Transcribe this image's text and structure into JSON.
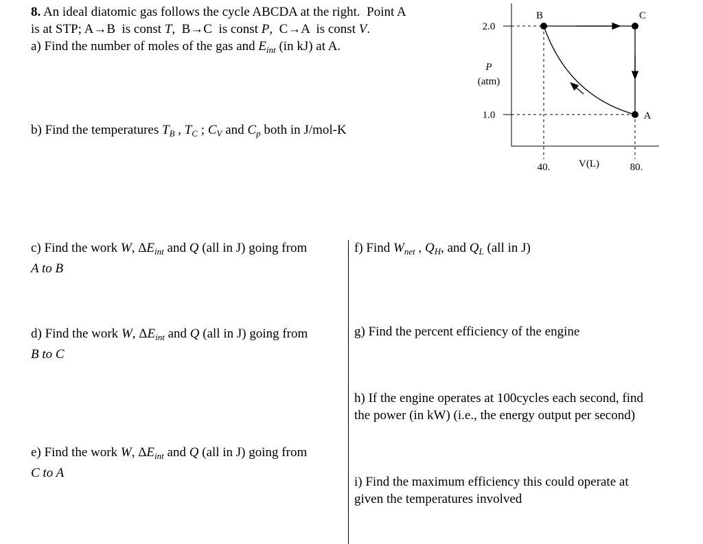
{
  "problem": {
    "number": "8.",
    "intro": [
      "An ideal diatomic gas follows the cycle ABCDA at the right.  Point A",
      "is at STP; A→B  is const ",
      "T",
      ",  B→C  is const ",
      "P",
      ",  C→A  is const ",
      "V",
      "."
    ]
  },
  "parts": {
    "a": {
      "label": "a)",
      "text": [
        "Find the number of moles of the gas and ",
        "E",
        "int",
        " (in kJ) at A."
      ]
    },
    "b": {
      "label": "b)",
      "text": [
        "Find the temperatures ",
        "T",
        "B",
        " , ",
        "T",
        "C",
        " ; ",
        "C",
        "V",
        " and ",
        "C",
        "p",
        " both in J/mol-K"
      ]
    },
    "c": {
      "label": "c)",
      "text": [
        "Find the work ",
        "W",
        ", Δ",
        "E",
        "int",
        " and ",
        "Q",
        " (all in J) going from",
        "A to B"
      ]
    },
    "d": {
      "label": "d)",
      "text": [
        "Find the work ",
        "W",
        ", Δ",
        "E",
        "int",
        " and ",
        "Q",
        " (all in J) going from",
        "B to C"
      ]
    },
    "e": {
      "label": "e)",
      "text": [
        "Find the work ",
        "W",
        ", Δ",
        "E",
        "int",
        " and ",
        "Q",
        " (all in J) going from",
        "C to A"
      ]
    },
    "f": {
      "label": "f)",
      "text": [
        "Find ",
        "W",
        "net",
        " , ",
        "Q",
        "H",
        ", and ",
        "Q",
        "L",
        " (all in J)"
      ]
    },
    "g": {
      "label": "g)",
      "text": [
        "Find the percent efficiency of the engine"
      ]
    },
    "h": {
      "label": "h)",
      "text": [
        "If the engine operates at 100cycles each second, find",
        "the power (in kW) (i.e., the energy output per second)"
      ]
    },
    "i": {
      "label": "i)",
      "text": [
        "Find the maximum efficiency this could operate at",
        "given the temperatures involved"
      ]
    }
  },
  "diagram": {
    "y_axis_label": "P",
    "y_axis_unit": "(atm)",
    "x_axis_label": "V(L)",
    "y_ticks": [
      "2.0",
      "1.0"
    ],
    "x_ticks": [
      "40.",
      "80."
    ],
    "points": [
      "B",
      "C",
      "A"
    ]
  }
}
